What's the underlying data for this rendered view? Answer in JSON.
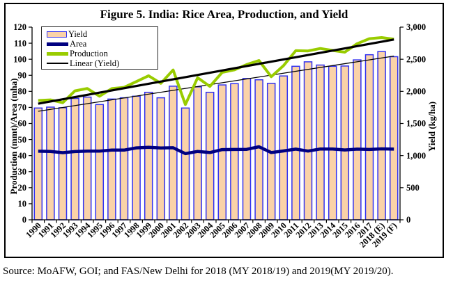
{
  "figure": {
    "title": "Figure 5. India: Rice Area, Production, and Yield",
    "source": "Source: MoAFW, GOI; and FAS/New Delhi for 2018 (MY 2018/19) and 2019(MY 2019/20)."
  },
  "colors": {
    "bar_fill": "#FAD2A8",
    "bar_border": "#3232F0",
    "area_line": "#000080",
    "production_line": "#99CC00",
    "trend_line": "#000000",
    "axis": "#000000"
  },
  "chart_data": {
    "type": "bar",
    "subtype": "combo bar+line, dual axis, no gridlines, legend top-left",
    "title": "Figure 5. India: Rice Area, Production, and Yield",
    "categories": [
      "1990",
      "1991",
      "1992",
      "1993",
      "1994",
      "1995",
      "1996",
      "1997",
      "1998",
      "1999",
      "2000",
      "2001",
      "2002",
      "2003",
      "2004",
      "2005",
      "2006",
      "2007",
      "2008",
      "2009",
      "2010",
      "2011",
      "2012",
      "2013",
      "2014",
      "2015",
      "2016",
      "2017",
      "2018 (E)",
      "2019 (F)"
    ],
    "left_axis": {
      "label": "Production (mmt)/Area (mha)",
      "min": 0,
      "max": 120,
      "step": 10
    },
    "right_axis": {
      "label": "Yield (kg/ha)",
      "min": 0,
      "max": 3000,
      "step": 500
    },
    "legend": [
      "Yield",
      "Area",
      "Production",
      "Linear (Yield)"
    ],
    "series": [
      {
        "name": "Yield",
        "type": "bar",
        "axis": "right",
        "unit": "kg/ha",
        "values": [
          1740,
          1755,
          1745,
          1890,
          1910,
          1795,
          1880,
          1900,
          1925,
          1985,
          1900,
          2080,
          1740,
          2070,
          1985,
          2100,
          2120,
          2200,
          2180,
          2125,
          2240,
          2390,
          2460,
          2410,
          2390,
          2395,
          2490,
          2570,
          2620,
          2540
        ]
      },
      {
        "name": "Area",
        "type": "line",
        "axis": "left",
        "unit": "mha",
        "values": [
          42.7,
          42.6,
          41.8,
          42.5,
          42.8,
          42.8,
          43.4,
          43.4,
          44.8,
          45.2,
          44.7,
          44.9,
          41.2,
          42.6,
          41.9,
          43.7,
          43.8,
          43.9,
          45.5,
          41.9,
          42.9,
          44.0,
          42.8,
          44.1,
          44.1,
          43.5,
          44.0,
          43.8,
          44.2,
          44.0
        ]
      },
      {
        "name": "Production",
        "type": "line",
        "axis": "left",
        "unit": "mmt",
        "values": [
          74.3,
          74.7,
          72.9,
          80.3,
          81.8,
          77.0,
          81.7,
          82.5,
          86.1,
          89.7,
          85.0,
          93.3,
          71.8,
          88.5,
          83.1,
          91.8,
          93.4,
          96.7,
          99.2,
          89.1,
          96.0,
          105.3,
          105.2,
          106.7,
          105.5,
          104.4,
          109.7,
          112.8,
          113.5,
          112.5
        ]
      },
      {
        "name": "Linear (Yield)",
        "type": "trend",
        "axis": "right",
        "shown_in_legend": true,
        "endpoints": [
          1690,
          2550
        ]
      },
      {
        "name": "Linear (Production)",
        "type": "trend",
        "axis": "left",
        "shown_in_legend": false,
        "endpoints": [
          72.3,
          112.3
        ]
      }
    ]
  }
}
